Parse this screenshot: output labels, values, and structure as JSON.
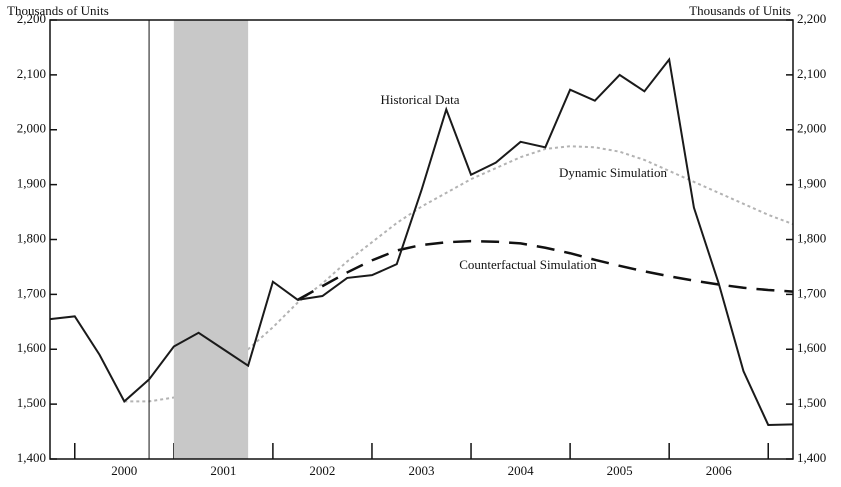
{
  "chart_data": {
    "type": "line",
    "y_label": "Thousands of Units",
    "y2_label": "Thousands of Units",
    "x": [
      1999.75,
      2000.0,
      2000.25,
      2000.5,
      2000.75,
      2001.0,
      2001.25,
      2001.5,
      2001.75,
      2002.0,
      2002.25,
      2002.5,
      2002.75,
      2003.0,
      2003.25,
      2003.5,
      2003.75,
      2004.0,
      2004.25,
      2004.5,
      2004.75,
      2005.0,
      2005.25,
      2005.5,
      2005.75,
      2006.0,
      2006.25,
      2006.5,
      2006.75,
      2007.0,
      2007.25
    ],
    "series": [
      {
        "name": "Dynamic Simulation",
        "color": "#b3b3b3",
        "style": "dotted",
        "values": [
          null,
          null,
          null,
          1505,
          1505,
          1512,
          1540,
          1570,
          1600,
          1640,
          1685,
          1720,
          1760,
          1795,
          1830,
          1860,
          1885,
          1910,
          1930,
          1950,
          1965,
          1970,
          1968,
          1960,
          1945,
          1925,
          1905,
          1885,
          1865,
          1845,
          1828
        ]
      },
      {
        "name": "Counterfactual Simulation",
        "color": "#111111",
        "style": "dashed",
        "values": [
          null,
          null,
          null,
          null,
          null,
          null,
          null,
          null,
          null,
          null,
          1690,
          1715,
          1740,
          1762,
          1780,
          1790,
          1795,
          1797,
          1796,
          1793,
          1785,
          1775,
          1763,
          1752,
          1742,
          1733,
          1725,
          1718,
          1712,
          1708,
          1705
        ]
      },
      {
        "name": "Historical Data",
        "color": "#1a1a1a",
        "style": "solid",
        "values": [
          1655,
          1660,
          1590,
          1505,
          1545,
          1605,
          1630,
          1600,
          1570,
          1723,
          1690,
          1697,
          1730,
          1735,
          1755,
          1890,
          2037,
          1918,
          1940,
          1978,
          1968,
          2073,
          2053,
          2100,
          2070,
          2128,
          1858,
          1720,
          1560,
          1462,
          1463
        ]
      }
    ],
    "xlim": [
      1999.75,
      2007.25
    ],
    "xticks": [
      {
        "value": 2000.5,
        "label": "2000"
      },
      {
        "value": 2001.5,
        "label": "2001"
      },
      {
        "value": 2002.5,
        "label": "2002"
      },
      {
        "value": 2003.5,
        "label": "2003"
      },
      {
        "value": 2004.5,
        "label": "2004"
      },
      {
        "value": 2005.5,
        "label": "2005"
      },
      {
        "value": 2006.5,
        "label": "2006"
      }
    ],
    "xtick_marks": [
      2000,
      2001,
      2002,
      2003,
      2004,
      2005,
      2006,
      2007
    ],
    "ylim": [
      1400,
      2200
    ],
    "yticks": [
      {
        "value": 1400,
        "label": "1,400"
      },
      {
        "value": 1500,
        "label": "1,500"
      },
      {
        "value": 1600,
        "label": "1,600"
      },
      {
        "value": 1700,
        "label": "1,700"
      },
      {
        "value": 1800,
        "label": "1,800"
      },
      {
        "value": 1900,
        "label": "1,900"
      },
      {
        "value": 2000,
        "label": "2,000"
      },
      {
        "value": 2100,
        "label": "2,100"
      },
      {
        "value": 2200,
        "label": "2,200"
      }
    ],
    "y2lim": [
      1400,
      2200
    ],
    "y2ticks": [
      {
        "value": 1400,
        "label": "1,400"
      },
      {
        "value": 1500,
        "label": "1,500"
      },
      {
        "value": 1600,
        "label": "1,600"
      },
      {
        "value": 1700,
        "label": "1,700"
      },
      {
        "value": 1800,
        "label": "1,800"
      },
      {
        "value": 1900,
        "label": "1,900"
      },
      {
        "value": 2000,
        "label": "2,000"
      },
      {
        "value": 2100,
        "label": "2,100"
      },
      {
        "value": 2200,
        "label": "2,200"
      }
    ],
    "shaded_span": [
      2001.0,
      2001.75
    ],
    "shade_color": "#c8c8c8",
    "vline": 2000.75
  }
}
